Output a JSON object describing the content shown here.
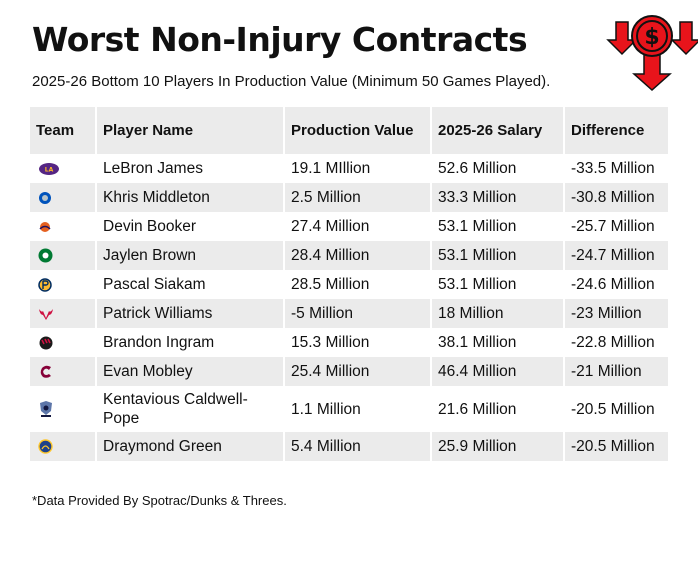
{
  "title": "Worst Non-Injury Contracts",
  "subtitle": "2025-26 Bottom 10 Players In Production Value (Minimum 50 Games Played).",
  "logo": {
    "icon": "dollar-down-arrows-icon",
    "color": "#e8141b"
  },
  "table": {
    "headers": {
      "team": "Team",
      "player": "Player Name",
      "production": "Production Value",
      "salary": "2025-26 Salary",
      "difference": "Difference"
    },
    "rows": [
      {
        "team_icon": "lakers-logo-icon",
        "player": "LeBron James",
        "production": "19.1 MIllion",
        "salary": "52.6 Million",
        "difference": "-33.5 Million"
      },
      {
        "team_icon": "mavericks-logo-icon",
        "player": "Khris Middleton",
        "production": "2.5 Million",
        "salary": "33.3 Million",
        "difference": "-30.8 Million"
      },
      {
        "team_icon": "suns-logo-icon",
        "player": "Devin Booker",
        "production": "27.4 Million",
        "salary": "53.1 Million",
        "difference": "-25.7 Million"
      },
      {
        "team_icon": "celtics-logo-icon",
        "player": "Jaylen Brown",
        "production": "28.4 Million",
        "salary": "53.1 Million",
        "difference": "-24.7 Million"
      },
      {
        "team_icon": "pacers-logo-icon",
        "player": "Pascal Siakam",
        "production": "28.5 Million",
        "salary": "53.1 Million",
        "difference": "-24.6 Million"
      },
      {
        "team_icon": "bulls-logo-icon",
        "player": "Patrick Williams",
        "production": "-5 Million",
        "salary": "18 Million",
        "difference": "-23 Million"
      },
      {
        "team_icon": "raptors-logo-icon",
        "player": "Brandon Ingram",
        "production": "15.3 Million",
        "salary": "38.1 Million",
        "difference": "-22.8 Million"
      },
      {
        "team_icon": "cavaliers-logo-icon",
        "player": "Evan Mobley",
        "production": "25.4 Million",
        "salary": "46.4 Million",
        "difference": "-21 Million"
      },
      {
        "team_icon": "grizzlies-logo-icon",
        "player": "Kentavious Caldwell-Pope",
        "production": "1.1 Million",
        "salary": "21.6 Million",
        "difference": "-20.5 Million"
      },
      {
        "team_icon": "warriors-logo-icon",
        "player": "Draymond Green",
        "production": "5.4 Million",
        "salary": "25.9 Million",
        "difference": "-20.5 Million"
      }
    ]
  },
  "footnote": "*Data Provided By Spotrac/Dunks & Threes."
}
